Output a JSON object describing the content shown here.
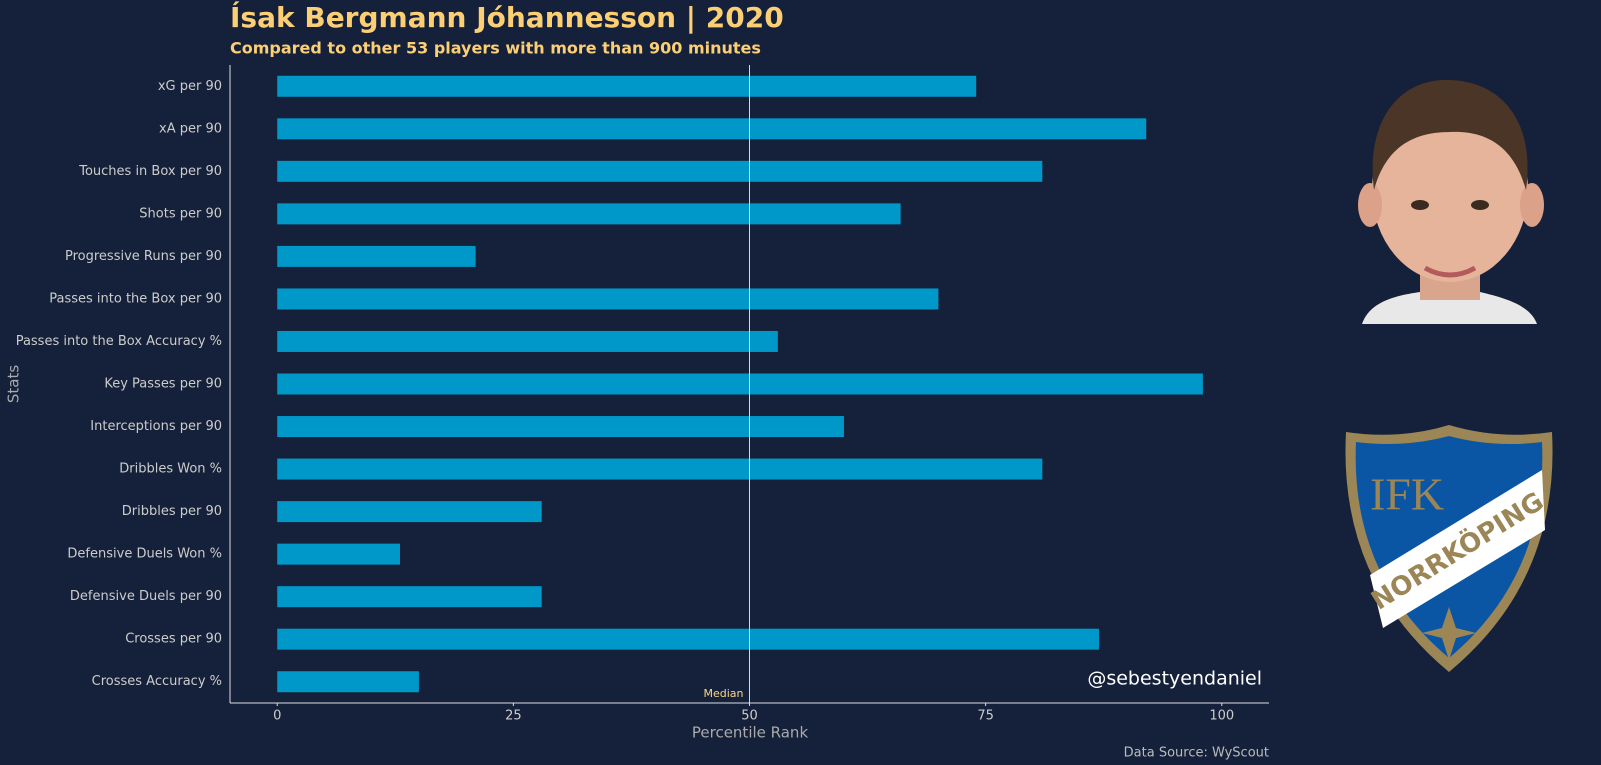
{
  "chart_data": {
    "type": "bar",
    "orientation": "horizontal",
    "title": "Ísak Bergmann Jóhannesson | 2020",
    "subtitle": "Compared to other 53 players with more than 900 minutes",
    "x_label": "Percentile Rank",
    "y_label": "Stats",
    "categories": [
      "xG per 90",
      "xA per 90",
      "Touches in Box per 90",
      "Shots per 90",
      "Progressive Runs per 90",
      "Passes into the Box per 90",
      "Passes into the Box Accuracy %",
      "Key Passes per 90",
      "Interceptions per 90",
      "Dribbles Won %",
      "Dribbles per 90",
      "Defensive Duels Won %",
      "Defensive Duels per 90",
      "Crosses per 90",
      "Crosses Accuracy %"
    ],
    "values": [
      74,
      92,
      81,
      66,
      21,
      70,
      53,
      98,
      60,
      81,
      28,
      13,
      28,
      87,
      15
    ],
    "color": "#0097c9",
    "xlim": [
      -5,
      105
    ],
    "xticks": [
      0,
      25,
      50,
      75,
      100
    ],
    "grid": false,
    "reference_line": {
      "value": 50,
      "label": "Median",
      "color": "#fdd58a"
    },
    "handle": "@sebestyendaniel",
    "source": "Data Source: WyScout"
  },
  "badge": {
    "line1": "IFK",
    "line2": "NORRKÖPING"
  }
}
